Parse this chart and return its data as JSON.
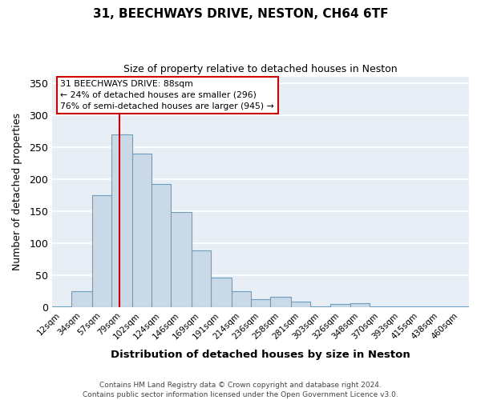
{
  "title_line1": "31, BEECHWAYS DRIVE, NESTON, CH64 6TF",
  "title_line2": "Size of property relative to detached houses in Neston",
  "xlabel": "Distribution of detached houses by size in Neston",
  "ylabel": "Number of detached properties",
  "bar_labels": [
    "12sqm",
    "34sqm",
    "57sqm",
    "79sqm",
    "102sqm",
    "124sqm",
    "146sqm",
    "169sqm",
    "191sqm",
    "214sqm",
    "236sqm",
    "258sqm",
    "281sqm",
    "303sqm",
    "326sqm",
    "348sqm",
    "370sqm",
    "393sqm",
    "415sqm",
    "438sqm",
    "460sqm"
  ],
  "bar_heights": [
    2,
    25,
    175,
    270,
    240,
    192,
    149,
    89,
    46,
    25,
    13,
    17,
    9,
    1,
    5,
    6,
    1,
    1,
    2,
    1,
    2
  ],
  "bin_edges": [
    12,
    34,
    57,
    79,
    102,
    124,
    146,
    169,
    191,
    214,
    236,
    258,
    281,
    303,
    326,
    348,
    370,
    393,
    415,
    438,
    460,
    482
  ],
  "bar_color": "#c9d9e8",
  "bar_edge_color": "#6a9fc0",
  "vline_x": 88,
  "vline_color": "#cc0000",
  "annotation_line1": "31 BEECHWAYS DRIVE: 88sqm",
  "annotation_line2": "← 24% of detached houses are smaller (296)",
  "annotation_line3": "76% of semi-detached houses are larger (945) →",
  "annotation_box_color": "#ffffff",
  "annotation_box_edge": "#cc0000",
  "ylim": [
    0,
    360
  ],
  "yticks": [
    0,
    50,
    100,
    150,
    200,
    250,
    300,
    350
  ],
  "fig_background_color": "#ffffff",
  "plot_background_color": "#e8eef5",
  "grid_color": "#ffffff",
  "footer_line1": "Contains HM Land Registry data © Crown copyright and database right 2024.",
  "footer_line2": "Contains public sector information licensed under the Open Government Licence v3.0."
}
